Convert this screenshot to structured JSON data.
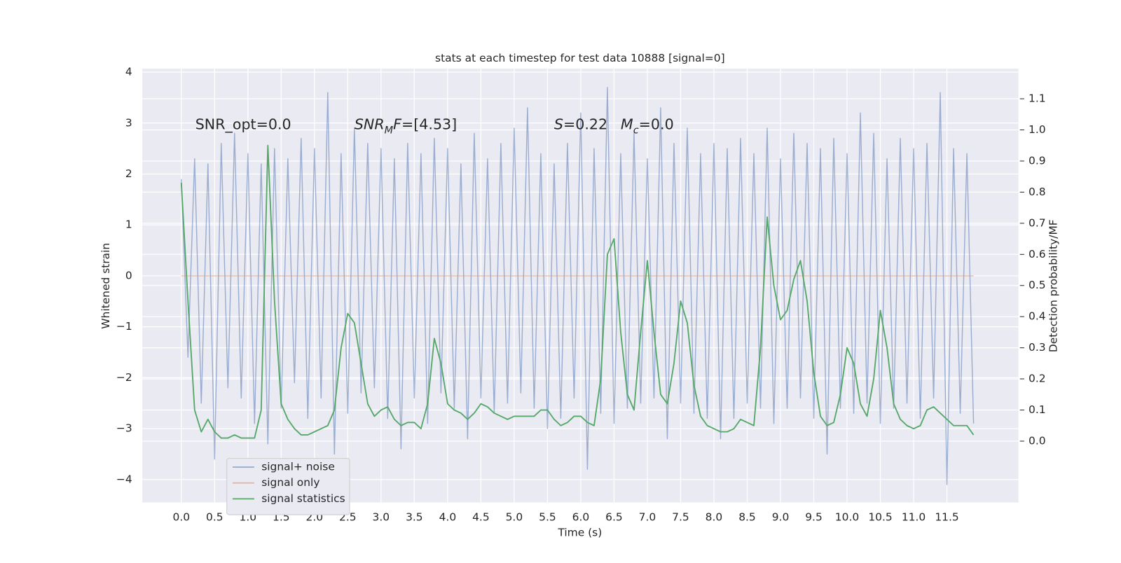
{
  "chart_data": {
    "type": "line",
    "title": "stats at each timestep for test data 10888 [signal=0]",
    "xlabel": "Time (s)",
    "ylabel": "Whitened strain",
    "y2label": "Detection probability/MF",
    "x": [
      0,
      0.1,
      0.2,
      0.3,
      0.4,
      0.5,
      0.6,
      0.7,
      0.8,
      0.9,
      1,
      1.1,
      1.2,
      1.3,
      1.4,
      1.5,
      1.6,
      1.7,
      1.8,
      1.9,
      2,
      2.1,
      2.2,
      2.3,
      2.4,
      2.5,
      2.6,
      2.7,
      2.8,
      2.9,
      3,
      3.1,
      3.2,
      3.3,
      3.4,
      3.5,
      3.6,
      3.7,
      3.8,
      3.9,
      4,
      4.1,
      4.2,
      4.3,
      4.4,
      4.5,
      4.6,
      4.7,
      4.8,
      4.9,
      5,
      5.1,
      5.2,
      5.3,
      5.4,
      5.5,
      5.6,
      5.7,
      5.8,
      5.9,
      6,
      6.1,
      6.2,
      6.3,
      6.4,
      6.5,
      6.6,
      6.7,
      6.8,
      6.9,
      7,
      7.1,
      7.2,
      7.3,
      7.4,
      7.5,
      7.6,
      7.7,
      7.8,
      7.9,
      8,
      8.1,
      8.2,
      8.3,
      8.4,
      8.5,
      8.6,
      8.7,
      8.8,
      8.9,
      9,
      9.1,
      9.2,
      9.3,
      9.4,
      9.5,
      9.6,
      9.7,
      9.8,
      9.9,
      10,
      10.1,
      10.2,
      10.3,
      10.4,
      10.5,
      10.6,
      10.7,
      10.8,
      10.9,
      11,
      11.1,
      11.2,
      11.3,
      11.4,
      11.5,
      11.6,
      11.7,
      11.8,
      11.9
    ],
    "series": [
      {
        "name": "signal+ noise",
        "color": "#4c72b0",
        "alpha": 0.5,
        "values": [
          1.9,
          -1.6,
          2.3,
          -2.5,
          2.2,
          -3.6,
          2.6,
          -2.2,
          2.8,
          -2.4,
          2.4,
          -2.9,
          2.2,
          -3.3,
          2.5,
          -2.6,
          2.3,
          -2.1,
          2.7,
          -2.8,
          2.5,
          -2.4,
          3.6,
          -3.5,
          2.4,
          -2.7,
          2.9,
          -2.3,
          2.6,
          -2.2,
          2.5,
          -2.8,
          2.3,
          -3.4,
          2.6,
          -2.4,
          2.4,
          -2.9,
          2.7,
          -2.3,
          2.5,
          -2.6,
          2.2,
          -3.2,
          2.8,
          -2.4,
          2.3,
          -2.7,
          2.6,
          -2.5,
          2.9,
          -2.3,
          3.3,
          -2.6,
          2.4,
          -3.0,
          2.2,
          -2.8,
          2.6,
          -2.4,
          3.2,
          -3.8,
          2.5,
          -2.7,
          3.7,
          -2.9,
          2.4,
          -2.6,
          2.8,
          -2.5,
          2.3,
          -2.4,
          3.3,
          -3.2,
          2.6,
          -2.5,
          2.9,
          -2.7,
          2.4,
          -2.8,
          2.6,
          -3.2,
          2.5,
          -2.8,
          2.7,
          -2.5,
          2.4,
          -2.6,
          2.9,
          -2.9,
          2.3,
          -2.6,
          2.8,
          -2.4,
          2.6,
          -2.8,
          2.5,
          -3.5,
          2.7,
          -2.6,
          2.4,
          -2.7,
          3.2,
          -2.5,
          2.8,
          -2.9,
          2.3,
          -2.6,
          2.7,
          -2.5,
          2.5,
          -2.8,
          2.6,
          -2.4,
          3.6,
          -4.1,
          2.5,
          -2.7,
          2.4,
          -2.9
        ]
      },
      {
        "name": "signal only",
        "color": "#dd8452",
        "alpha": 0.5,
        "values": [
          0,
          0,
          0,
          0,
          0,
          0,
          0,
          0,
          0,
          0,
          0,
          0,
          0,
          0,
          0,
          0,
          0,
          0,
          0,
          0,
          0,
          0,
          0,
          0,
          0,
          0,
          0,
          0,
          0,
          0,
          0,
          0,
          0,
          0,
          0,
          0,
          0,
          0,
          0,
          0,
          0,
          0,
          0,
          0,
          0,
          0,
          0,
          0,
          0,
          0,
          0,
          0,
          0,
          0,
          0,
          0,
          0,
          0,
          0,
          0,
          0,
          0,
          0,
          0,
          0,
          0,
          0,
          0,
          0,
          0,
          0,
          0,
          0,
          0,
          0,
          0,
          0,
          0,
          0,
          0,
          0,
          0,
          0,
          0,
          0,
          0,
          0,
          0,
          0,
          0,
          0,
          0,
          0,
          0,
          0,
          0,
          0,
          0,
          0,
          0,
          0,
          0,
          0,
          0,
          0,
          0,
          0,
          0,
          0,
          0,
          0,
          0,
          0,
          0,
          0,
          0,
          0,
          0,
          0,
          0
        ]
      },
      {
        "name": "signal statistics",
        "color": "#55a868",
        "alpha": 1,
        "axis": "y2",
        "values": [
          0.83,
          0.45,
          0.1,
          0.03,
          0.07,
          0.03,
          0.01,
          0.01,
          0.02,
          0.01,
          0.01,
          0.01,
          0.1,
          0.95,
          0.45,
          0.12,
          0.07,
          0.04,
          0.02,
          0.02,
          0.03,
          0.04,
          0.05,
          0.1,
          0.3,
          0.41,
          0.38,
          0.25,
          0.12,
          0.08,
          0.1,
          0.11,
          0.07,
          0.05,
          0.06,
          0.06,
          0.04,
          0.12,
          0.33,
          0.25,
          0.12,
          0.1,
          0.09,
          0.07,
          0.09,
          0.12,
          0.11,
          0.09,
          0.08,
          0.07,
          0.08,
          0.08,
          0.08,
          0.08,
          0.1,
          0.1,
          0.07,
          0.05,
          0.06,
          0.08,
          0.08,
          0.06,
          0.05,
          0.2,
          0.6,
          0.65,
          0.35,
          0.15,
          0.1,
          0.35,
          0.58,
          0.35,
          0.15,
          0.12,
          0.25,
          0.45,
          0.38,
          0.18,
          0.08,
          0.05,
          0.04,
          0.03,
          0.03,
          0.04,
          0.07,
          0.06,
          0.05,
          0.3,
          0.72,
          0.5,
          0.39,
          0.42,
          0.52,
          0.58,
          0.45,
          0.22,
          0.08,
          0.05,
          0.06,
          0.15,
          0.3,
          0.25,
          0.12,
          0.08,
          0.2,
          0.42,
          0.3,
          0.12,
          0.07,
          0.05,
          0.04,
          0.05,
          0.1,
          0.11,
          0.09,
          0.07,
          0.05,
          0.05,
          0.05,
          0.02
        ]
      }
    ],
    "xlim": [
      -0.586,
      12.574
    ],
    "xticks": [
      {
        "value": 0,
        "label": "0.0"
      },
      {
        "value": 0.5,
        "label": "0.5"
      },
      {
        "value": 1,
        "label": "1.0"
      },
      {
        "value": 1.5,
        "label": "1.5"
      },
      {
        "value": 2,
        "label": "2.0"
      },
      {
        "value": 2.5,
        "label": "2.5"
      },
      {
        "value": 3,
        "label": "3.0"
      },
      {
        "value": 3.5,
        "label": "3.5"
      },
      {
        "value": 4,
        "label": "4.0"
      },
      {
        "value": 4.5,
        "label": "4.5"
      },
      {
        "value": 5,
        "label": "5.0"
      },
      {
        "value": 5.5,
        "label": "5.5"
      },
      {
        "value": 6,
        "label": "6.0"
      },
      {
        "value": 6.5,
        "label": "6.5"
      },
      {
        "value": 7,
        "label": "7.0"
      },
      {
        "value": 7.5,
        "label": "7.5"
      },
      {
        "value": 8,
        "label": "8.0"
      },
      {
        "value": 8.5,
        "label": "8.5"
      },
      {
        "value": 9,
        "label": "9.0"
      },
      {
        "value": 9.5,
        "label": "9.5"
      },
      {
        "value": 10,
        "label": "10.0"
      },
      {
        "value": 10.5,
        "label": "10.5"
      },
      {
        "value": 11,
        "label": "11.0"
      },
      {
        "value": 11.5,
        "label": "11.5"
      }
    ],
    "ylim": [
      -4.45,
      4.07
    ],
    "yticks": [
      {
        "value": -4,
        "label": "−4"
      },
      {
        "value": -3,
        "label": "−3"
      },
      {
        "value": -2,
        "label": "−2"
      },
      {
        "value": -1,
        "label": "−1"
      },
      0,
      1,
      2,
      3,
      4
    ],
    "y2lim": [
      -0.197,
      1.197
    ],
    "y2ticks": [
      {
        "value": 0,
        "label": "0.0"
      },
      {
        "value": 0.1,
        "label": "0.1"
      },
      {
        "value": 0.2,
        "label": "0.2"
      },
      {
        "value": 0.3,
        "label": "0.3"
      },
      {
        "value": 0.4,
        "label": "0.4"
      },
      {
        "value": 0.5,
        "label": "0.5"
      },
      {
        "value": 0.6,
        "label": "0.6"
      },
      {
        "value": 0.7,
        "label": "0.7"
      },
      {
        "value": 0.8,
        "label": "0.8"
      },
      {
        "value": 0.9,
        "label": "0.9"
      },
      {
        "value": 1,
        "label": "1.0"
      },
      {
        "value": 1.1,
        "label": "1.1"
      }
    ],
    "grid": true,
    "legend": "lower left",
    "annotations": [
      {
        "x": 0.21,
        "y": 2.96,
        "parts": [
          {
            "text": "SNR_opt=0.0"
          }
        ]
      },
      {
        "x": 2.6,
        "y": 2.96,
        "parts": [
          {
            "text": "SNR",
            "italic": true
          },
          {
            "text": "M",
            "italic": true,
            "sub": true
          },
          {
            "text": "F",
            "italic": true
          },
          {
            "text": "=[4.53]"
          }
        ]
      },
      {
        "x": 5.6,
        "y": 2.96,
        "parts": [
          {
            "text": "S",
            "italic": true
          },
          {
            "text": "=0.22"
          }
        ]
      },
      {
        "x": 6.6,
        "y": 2.96,
        "parts": [
          {
            "text": "M",
            "italic": true
          },
          {
            "text": "c",
            "italic": true,
            "sub": true
          },
          {
            "text": "=0.0"
          }
        ]
      }
    ]
  }
}
